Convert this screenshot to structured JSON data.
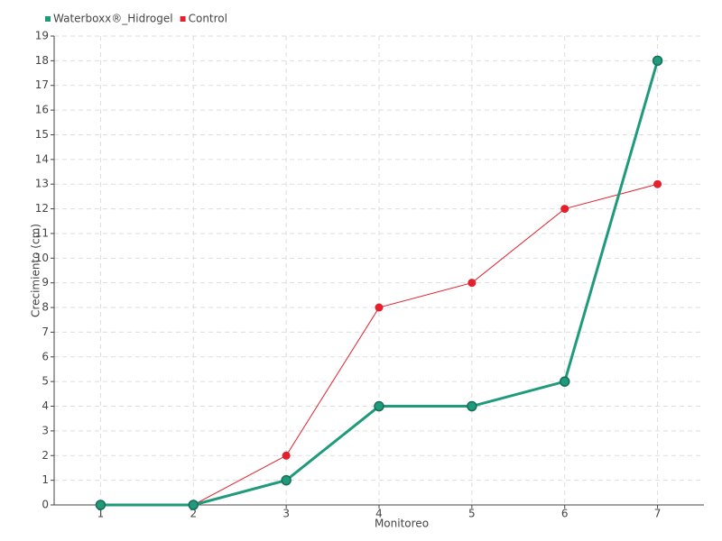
{
  "chart_data": {
    "type": "line",
    "x": [
      1,
      2,
      3,
      4,
      5,
      6,
      7
    ],
    "xlim": [
      0.5,
      7.5
    ],
    "xticks": [
      1,
      2,
      3,
      4,
      5,
      6,
      7
    ],
    "ylim": [
      0,
      19
    ],
    "yticks": [
      0,
      1,
      2,
      3,
      4,
      5,
      6,
      7,
      8,
      9,
      10,
      11,
      12,
      13,
      14,
      15,
      16,
      17,
      18,
      19
    ],
    "xlabel": "Monitoreo",
    "ylabel": "Crecimiento (cm)",
    "grid": true,
    "legend": "top-left",
    "series": [
      {
        "name": "Waterboxx®_Hidrogel",
        "color": "#1f9a7b",
        "values": [
          0,
          0,
          1,
          4,
          4,
          5,
          18
        ]
      },
      {
        "name": "Control",
        "color": "#e3202b",
        "values": [
          0,
          0,
          2,
          8,
          9,
          12,
          13
        ]
      }
    ]
  }
}
